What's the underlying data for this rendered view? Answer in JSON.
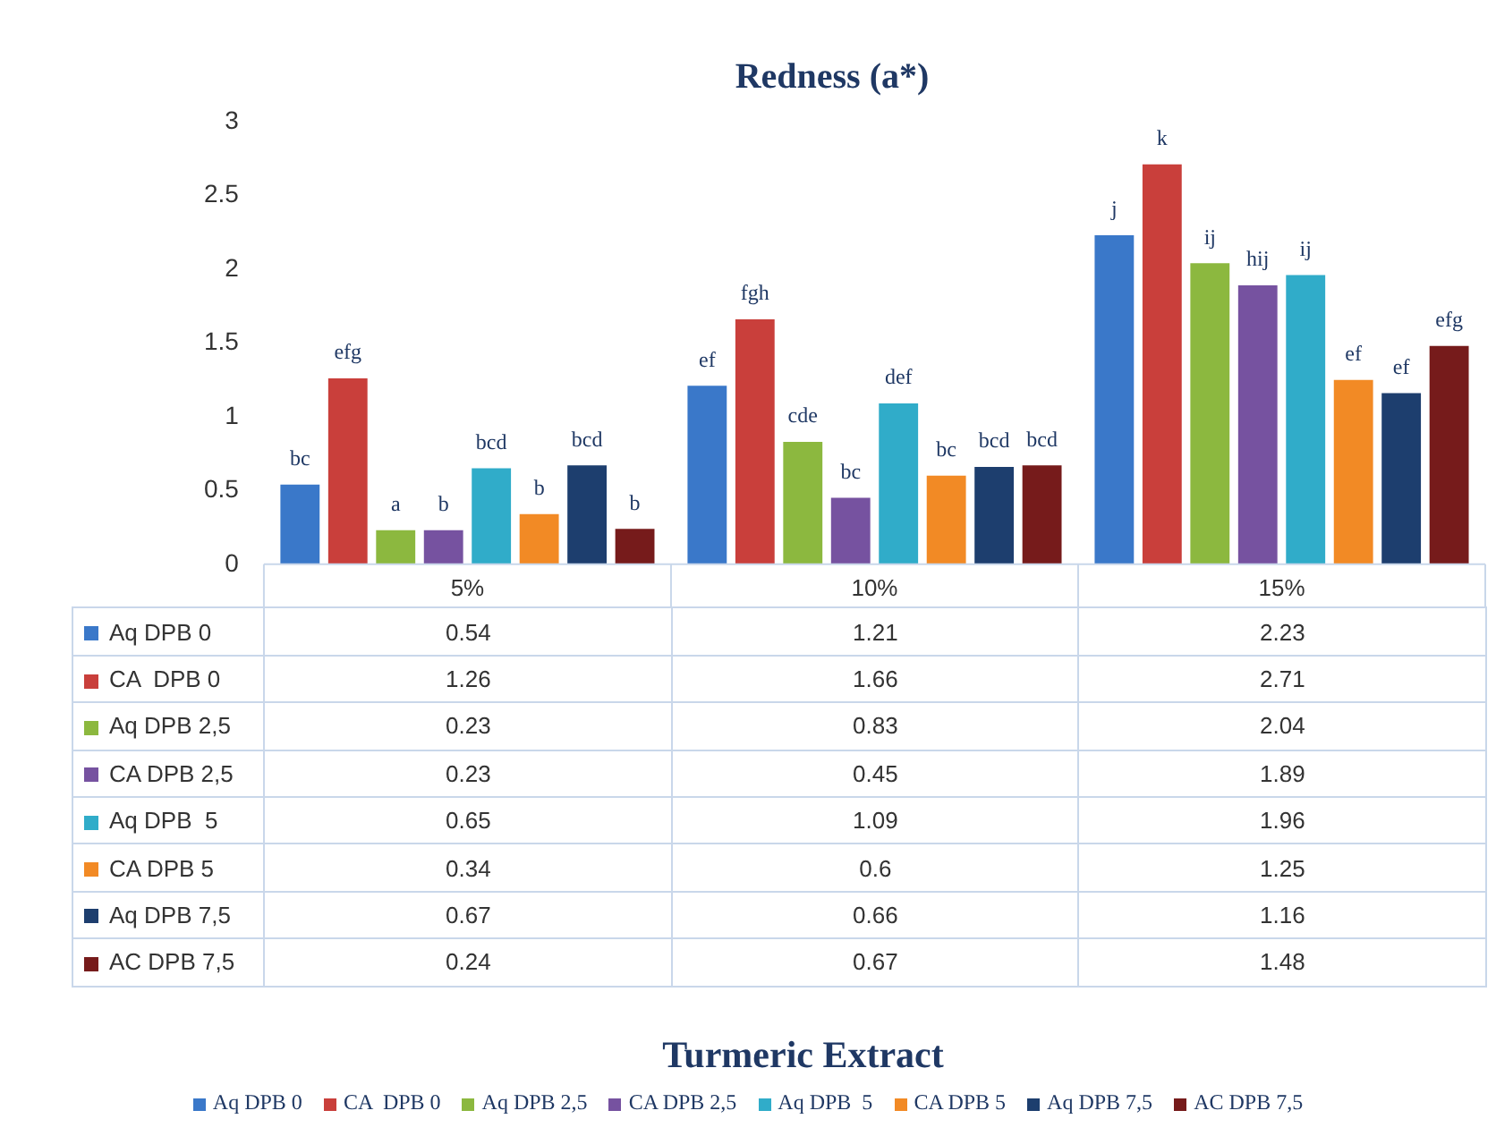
{
  "chart_data": {
    "type": "bar",
    "title": "Redness (a*)",
    "annotations": [
      "Turmeric Extract",
      "bc",
      "efg",
      "a",
      "b",
      "bcd",
      "b",
      "bcd",
      "b",
      "ef",
      "fgh",
      "cde",
      "bc",
      "def",
      "bc",
      "bcd",
      "bcd",
      "j",
      "k",
      "ij",
      "hij",
      "ij",
      "ef",
      "ef",
      "efg"
    ],
    "categories": [
      "5%",
      "10%",
      "15%"
    ],
    "series": [
      {
        "name": "Aq DPB 0",
        "color": "#3a78c9",
        "values": [
          0.54,
          1.21,
          2.23
        ]
      },
      {
        "name": "CA  DPB 0",
        "color": "#c93f3b",
        "values": [
          1.26,
          1.66,
          2.71
        ]
      },
      {
        "name": "Aq DPB 2,5",
        "color": "#8cb83f",
        "values": [
          0.23,
          0.83,
          2.04
        ]
      },
      {
        "name": "CA DPB 2,5",
        "color": "#7652a0",
        "values": [
          0.23,
          0.45,
          1.89
        ]
      },
      {
        "name": "Aq DPB  5",
        "color": "#30acc9",
        "values": [
          0.65,
          1.09,
          1.96
        ]
      },
      {
        "name": "CA DPB 5",
        "color": "#f28a25",
        "values": [
          0.34,
          0.6,
          1.25
        ]
      },
      {
        "name": "Aq DPB 7,5",
        "color": "#1d3e6e",
        "values": [
          0.67,
          0.66,
          1.16
        ]
      },
      {
        "name": "AC DPB 7,5",
        "color": "#761b1b",
        "values": [
          0.24,
          0.67,
          1.48
        ]
      }
    ],
    "ylim": [
      0,
      3
    ],
    "yticks": [
      0,
      0.5,
      1,
      1.5,
      2,
      2.5,
      3
    ],
    "grid": false,
    "legend": "bottom",
    "data_labels": true
  }
}
